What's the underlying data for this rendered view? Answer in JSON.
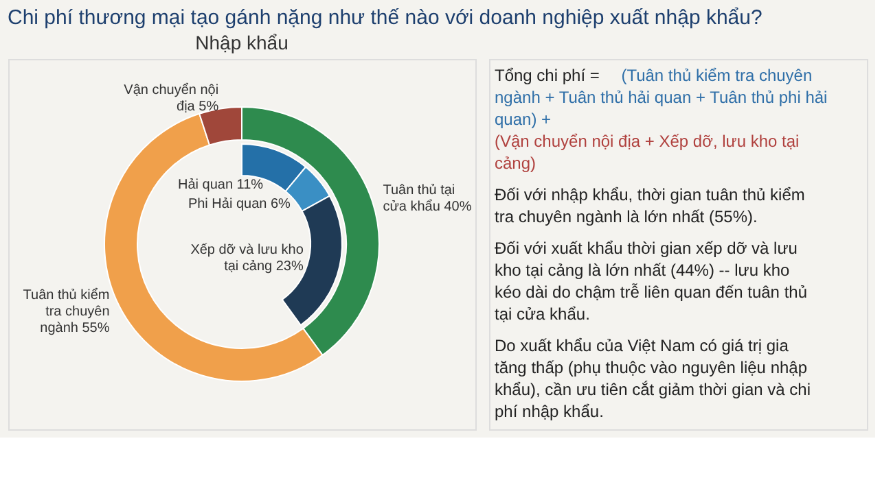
{
  "chart_data": [
    {
      "type": "donut",
      "title": "Chi phí thương mại tạo gánh nặng như thế nào với doanh nghiệp xuất nhập khẩu?",
      "subtitle": "Nhập khẩu",
      "categories": [
        "Tuân thủ tại cửa khẩu",
        "Tuân thủ kiểm tra chuyên ngành",
        "Vận chuyển nội địa",
        "Hải quan",
        "Phi Hải quan",
        "Xếp dỡ và lưu kho tại cảng"
      ],
      "colors": [
        "#2e8b4e",
        "#f0a04b",
        "#a0473a",
        "#2470a8",
        "#3a8fc4",
        "#1f3a55"
      ],
      "data_labels": true,
      "series": [
        {
          "values": [
            40,
            55,
            5,
            null,
            null,
            null
          ],
          "value_labels": [
            "40%",
            "55%",
            "5%",
            null,
            null,
            null
          ]
        },
        {
          "values": [
            null,
            null,
            null,
            11,
            6,
            23
          ],
          "value_labels": [
            null,
            null,
            null,
            "11%",
            "6%",
            "23%"
          ]
        }
      ]
    },
    {
      "type": "other",
      "annotations": [
        "Tổng chi phí =",
        "(Tuân thủ kiểm tra chuyên ngành + Tuân thủ hải quan + Tuân thủ phi hải quan) +",
        "(Vận chuyển nội địa + Xếp dỡ, lưu kho tại cảng)",
        "Đối với nhập khẩu, thời gian tuân thủ kiểm tra chuyên ngành là lớn nhất (55%).",
        "Đối với xuất khẩu thời gian xếp dỡ và lưu kho tại cảng là lớn nhất (44%) -- lưu kho kéo dài do chậm trễ liên quan đến tuân thủ tại cửa khẩu.",
        "Do xuất khẩu của Việt Nam có giá trị gia tăng thấp (phụ thuộc vào nguyên liệu nhập khẩu), cần ưu tiên cắt giảm thời gian và chi phí nhập khẩu."
      ]
    }
  ]
}
